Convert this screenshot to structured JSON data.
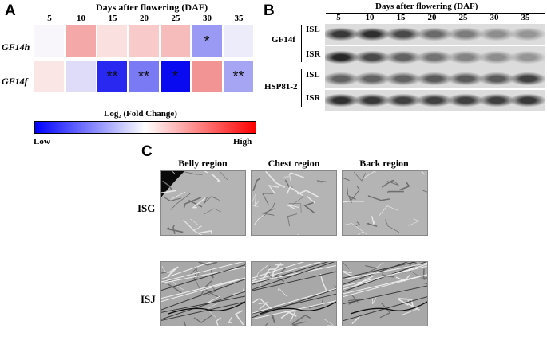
{
  "panel_a": {
    "letter": "A",
    "header": "Days after flowering (DAF)",
    "columns": [
      "5",
      "10",
      "15",
      "20",
      "25",
      "30",
      "35"
    ],
    "rows": [
      {
        "label": "GF14h",
        "colors": [
          "#f8f6fb",
          "#f4a8a8",
          "#fbe0e0",
          "#f8caca",
          "#f6bcbc",
          "#9a9af5",
          "#ececfa"
        ],
        "marks": [
          "",
          "",
          "",
          "",
          "",
          "*",
          ""
        ]
      },
      {
        "label": "GF14f",
        "colors": [
          "#fbe6e6",
          "#dedcf8",
          "#2828f0",
          "#7a7af4",
          "#0a0af0",
          "#f39494",
          "#a5a5f3"
        ],
        "marks": [
          "",
          "",
          "**",
          "**",
          "*",
          "",
          "**"
        ]
      }
    ],
    "legend_title": "Log₂ (Fold Change)",
    "legend_low": "Low",
    "legend_high": "High",
    "legend_colors": {
      "low": "#0000ff",
      "mid": "#ffffff",
      "high": "#ff0000"
    }
  },
  "panel_b": {
    "letter": "B",
    "header": "Days after flowering (DAF)",
    "columns": [
      "5",
      "10",
      "15",
      "20",
      "25",
      "30",
      "35"
    ],
    "proteins": [
      {
        "name": "GF14f",
        "lanes": [
          "ISL",
          "ISR"
        ]
      },
      {
        "name": "HSP81-2",
        "lanes": [
          "ISL",
          "ISR"
        ]
      }
    ]
  },
  "panel_c": {
    "letter": "C",
    "columns": [
      "Belly region",
      "Chest region",
      "Back region"
    ],
    "rows": [
      "ISG",
      "ISJ"
    ]
  }
}
